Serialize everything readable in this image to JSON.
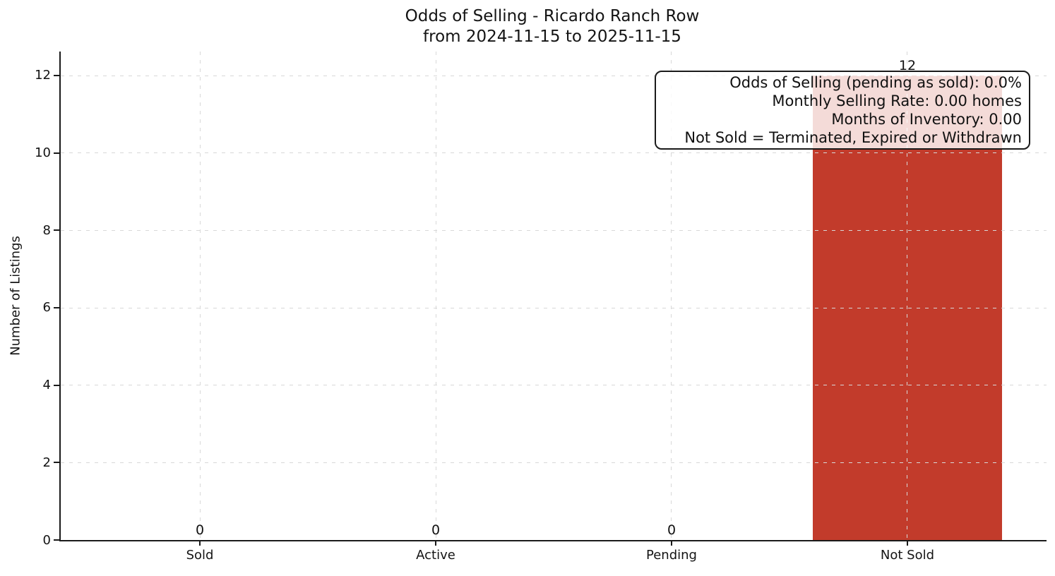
{
  "figure": {
    "title_line1": "Odds of Selling - Ricardo Ranch Row",
    "title_line2": "from 2024-11-15 to 2025-11-15"
  },
  "chart_data": {
    "type": "bar",
    "title": "Odds of Selling - Ricardo Ranch Row\nfrom 2024-11-15 to 2025-11-15",
    "xlabel": "",
    "ylabel": "Number of Listings",
    "categories": [
      "Sold",
      "Active",
      "Pending",
      "Not Sold"
    ],
    "values": [
      0,
      0,
      0,
      12
    ],
    "bar_labels": [
      "0",
      "0",
      "0",
      "12"
    ],
    "bar_color": "#c23b2b",
    "yticks": [
      0,
      2,
      4,
      6,
      8,
      10,
      12
    ],
    "ylim": [
      0,
      12.62
    ],
    "grid": "both-dashed",
    "grid_color": "#d8d8d8",
    "axis_color": "#1a1a1a",
    "legend_position": "none",
    "annotation": {
      "lines": [
        "Odds of Selling (pending as sold): 0.0%",
        "Monthly Selling Rate: 0.00 homes",
        "Months of Inventory: 0.00",
        "Not Sold = Terminated, Expired or Withdrawn"
      ]
    }
  }
}
